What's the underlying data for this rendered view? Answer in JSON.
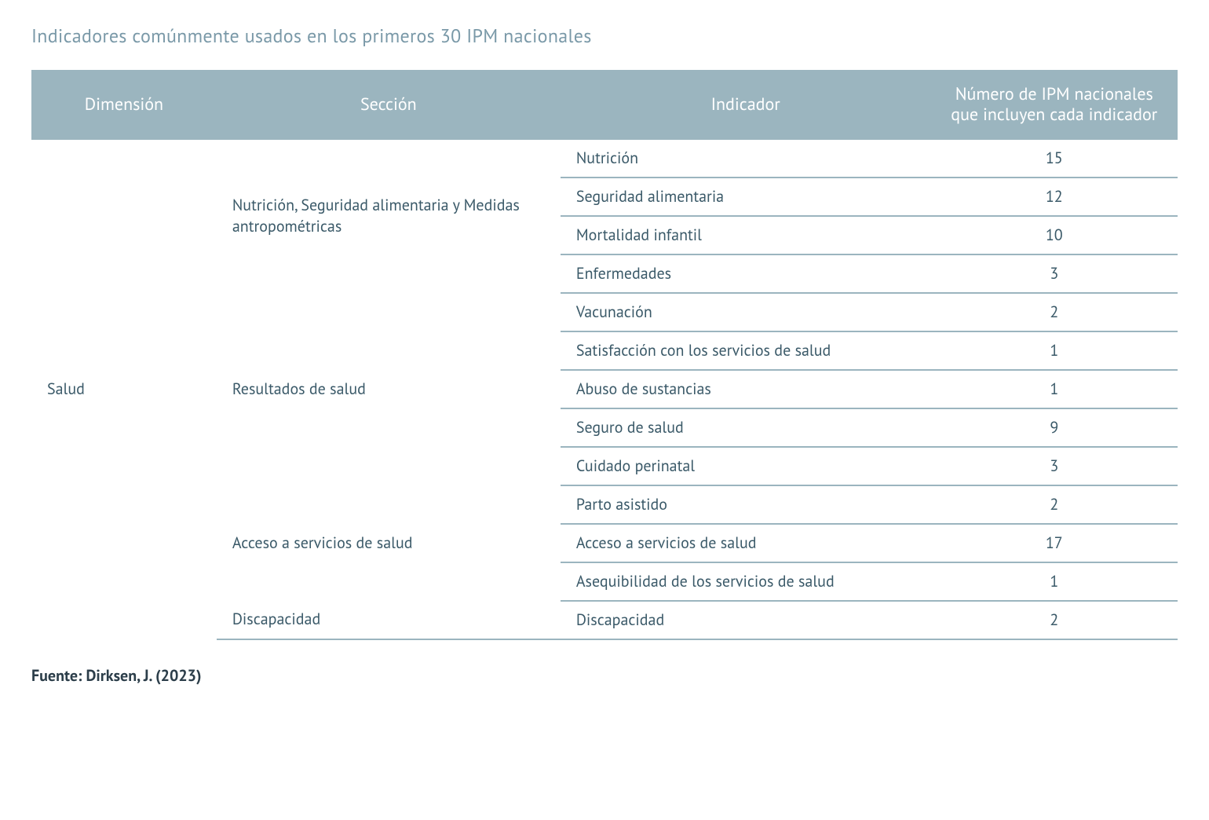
{
  "title": "Indicadores comúnmente usados en los primeros 30 IPM nacionales",
  "columns": {
    "dimension": "Dimensión",
    "section": "Sección",
    "indicator": "Indicador",
    "count": "Número de IPM nacionales que incluyen cada indicador"
  },
  "dimension": "Salud",
  "sections": [
    {
      "name": "Nutrición, Seguridad alimentaria y Medidas antropométricas",
      "indicators": [
        {
          "label": "Nutrición",
          "count": "15"
        },
        {
          "label": "Seguridad alimentaria",
          "count": "12"
        },
        {
          "label": "Mortalidad infantil",
          "count": "10"
        },
        {
          "label": "Enfermedades",
          "count": "3"
        }
      ]
    },
    {
      "name": "Resultados de salud",
      "indicators": [
        {
          "label": "Vacunación",
          "count": "2"
        },
        {
          "label": "Satisfacción con los servicios de salud",
          "count": "1"
        },
        {
          "label": "Abuso de sustancias",
          "count": "1"
        },
        {
          "label": "Seguro de salud",
          "count": "9"
        },
        {
          "label": "Cuidado perinatal",
          "count": "3"
        }
      ]
    },
    {
      "name": "Acceso a servicios de salud",
      "indicators": [
        {
          "label": "Parto asistido",
          "count": "2"
        },
        {
          "label": "Acceso a servicios de salud",
          "count": "17"
        },
        {
          "label": "Asequibilidad de los servicios de salud",
          "count": "1"
        }
      ]
    },
    {
      "name": "Discapacidad",
      "indicators": [
        {
          "label": "Discapacidad",
          "count": "2"
        }
      ]
    }
  ],
  "source": "Fuente: Dirksen, J. (2023)",
  "colors": {
    "header_bg": "#9bb5bf",
    "header_text": "#ffffff",
    "body_text": "#3a5968",
    "title_text": "#7a99a8",
    "border": "#9bb5bf",
    "source_text": "#2c3e4a"
  }
}
